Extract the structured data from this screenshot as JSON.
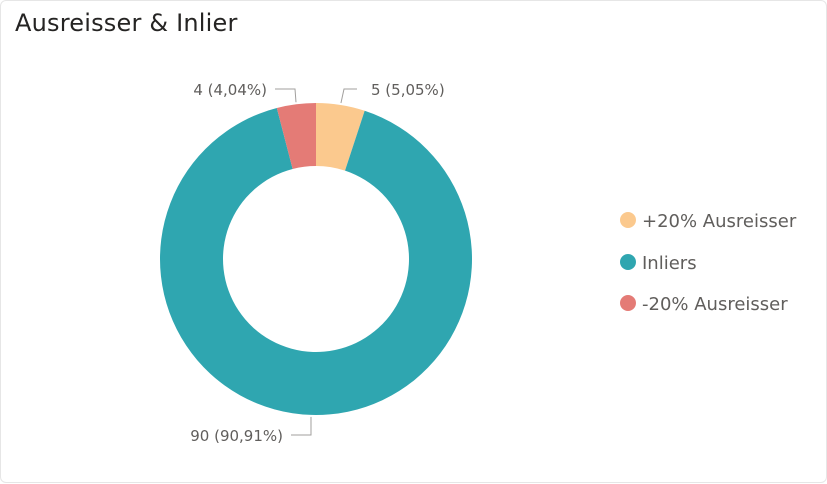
{
  "title": "Ausreisser & Inlier",
  "chart_data": {
    "type": "pie",
    "subtype": "donut",
    "title": "Ausreisser & Inlier",
    "categories": [
      "+20% Ausreisser",
      "Inliers",
      "-20% Ausreisser"
    ],
    "values": [
      5,
      90,
      4
    ],
    "percentages": [
      "5,05%",
      "90,91%",
      "4,04%"
    ],
    "data_labels": [
      "5 (5,05%)",
      "90 (90,91%)",
      "4 (4,04%)"
    ],
    "colors": [
      "#fbc98e",
      "#2fa6b0",
      "#e47b76"
    ],
    "legend_position": "right"
  },
  "legend": {
    "items": [
      {
        "label": "+20% Ausreisser",
        "color": "#fbc98e"
      },
      {
        "label": "Inliers",
        "color": "#2fa6b0"
      },
      {
        "label": "-20% Ausreisser",
        "color": "#e47b76"
      }
    ]
  }
}
